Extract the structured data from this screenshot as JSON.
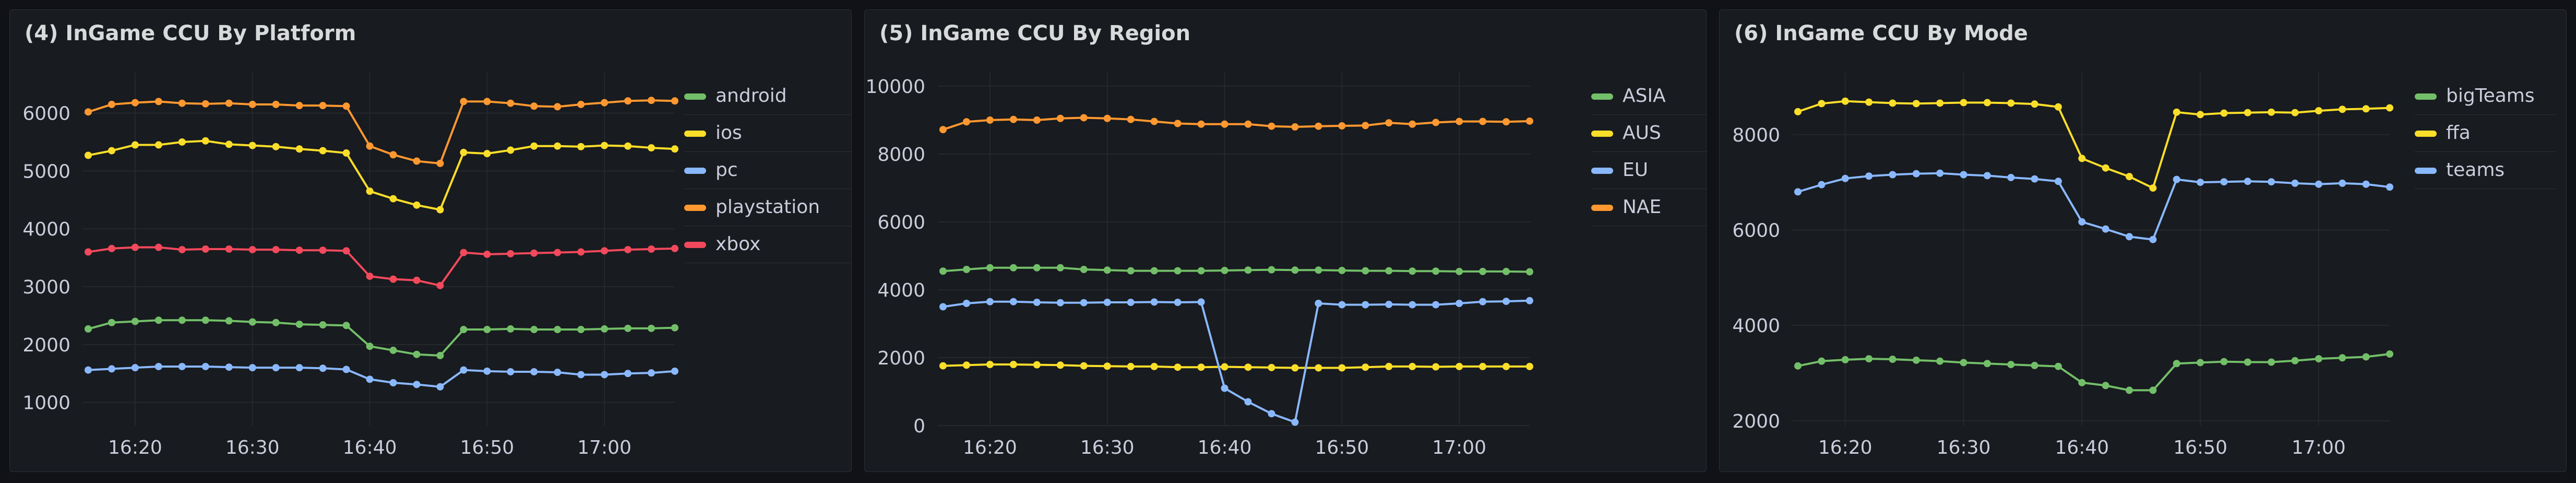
{
  "panels": [
    {
      "title": "(4) InGame CCU By Platform",
      "legend": [
        {
          "label": "android",
          "color": "#73bf69"
        },
        {
          "label": "ios",
          "color": "#fade2a"
        },
        {
          "label": "pc",
          "color": "#8ab8ff"
        },
        {
          "label": "playstation",
          "color": "#ff9830"
        },
        {
          "label": "xbox",
          "color": "#f2495c"
        }
      ]
    },
    {
      "title": "(5) InGame CCU By Region",
      "legend": [
        {
          "label": "ASIA",
          "color": "#73bf69"
        },
        {
          "label": "AUS",
          "color": "#fade2a"
        },
        {
          "label": "EU",
          "color": "#8ab8ff"
        },
        {
          "label": "NAE",
          "color": "#ff9830"
        }
      ]
    },
    {
      "title": "(6) InGame CCU By Mode",
      "legend": [
        {
          "label": "bigTeams",
          "color": "#73bf69"
        },
        {
          "label": "ffa",
          "color": "#fade2a"
        },
        {
          "label": "teams",
          "color": "#8ab8ff"
        }
      ]
    }
  ],
  "chart_data": [
    {
      "type": "line",
      "title": "(4) InGame CCU By Platform",
      "x": [
        "16:16",
        "16:18",
        "16:20",
        "16:22",
        "16:24",
        "16:26",
        "16:28",
        "16:30",
        "16:32",
        "16:34",
        "16:36",
        "16:38",
        "16:40",
        "16:42",
        "16:44",
        "16:46",
        "16:48",
        "16:50",
        "16:52",
        "16:54",
        "16:56",
        "16:58",
        "17:00",
        "17:02",
        "17:04",
        "17:06"
      ],
      "xticks": [
        "16:20",
        "16:30",
        "16:40",
        "16:50",
        "17:00"
      ],
      "yticks": [
        1000,
        2000,
        3000,
        4000,
        5000,
        6000
      ],
      "ylim": [
        600,
        6700
      ],
      "legend_position": "right",
      "grid": true,
      "series": [
        {
          "name": "android",
          "color": "#73bf69",
          "values": [
            2270,
            2380,
            2400,
            2420,
            2420,
            2420,
            2410,
            2390,
            2380,
            2350,
            2340,
            2330,
            1970,
            1900,
            1830,
            1810,
            2260,
            2260,
            2270,
            2260,
            2260,
            2260,
            2270,
            2280,
            2280,
            2290
          ]
        },
        {
          "name": "ios",
          "color": "#fade2a",
          "values": [
            5270,
            5350,
            5450,
            5450,
            5500,
            5520,
            5460,
            5440,
            5420,
            5380,
            5350,
            5310,
            4650,
            4520,
            4410,
            4330,
            5320,
            5300,
            5360,
            5430,
            5430,
            5420,
            5440,
            5430,
            5400,
            5380
          ]
        },
        {
          "name": "pc",
          "color": "#8ab8ff",
          "values": [
            1560,
            1580,
            1600,
            1620,
            1620,
            1620,
            1610,
            1600,
            1600,
            1600,
            1590,
            1570,
            1400,
            1340,
            1310,
            1270,
            1560,
            1540,
            1530,
            1530,
            1520,
            1480,
            1480,
            1500,
            1510,
            1540
          ]
        },
        {
          "name": "playstation",
          "color": "#ff9830",
          "values": [
            6020,
            6150,
            6180,
            6200,
            6170,
            6160,
            6170,
            6150,
            6150,
            6130,
            6130,
            6120,
            5430,
            5280,
            5170,
            5130,
            6200,
            6200,
            6170,
            6120,
            6110,
            6150,
            6180,
            6210,
            6220,
            6210
          ]
        },
        {
          "name": "xbox",
          "color": "#f2495c",
          "values": [
            3600,
            3660,
            3680,
            3680,
            3640,
            3650,
            3650,
            3640,
            3640,
            3630,
            3630,
            3620,
            3180,
            3130,
            3110,
            3020,
            3590,
            3560,
            3570,
            3580,
            3590,
            3600,
            3620,
            3640,
            3650,
            3660
          ]
        }
      ]
    },
    {
      "type": "line",
      "title": "(5) InGame CCU By Region",
      "x": [
        "16:16",
        "16:18",
        "16:20",
        "16:22",
        "16:24",
        "16:26",
        "16:28",
        "16:30",
        "16:32",
        "16:34",
        "16:36",
        "16:38",
        "16:40",
        "16:42",
        "16:44",
        "16:46",
        "16:48",
        "16:50",
        "16:52",
        "16:54",
        "16:56",
        "16:58",
        "17:00",
        "17:02",
        "17:04",
        "17:06"
      ],
      "xticks": [
        "16:20",
        "16:30",
        "16:40",
        "16:50",
        "17:00"
      ],
      "yticks": [
        0,
        2000,
        4000,
        6000,
        8000,
        10000
      ],
      "ylim": [
        0,
        10400
      ],
      "legend_position": "right",
      "grid": true,
      "series": [
        {
          "name": "ASIA",
          "color": "#73bf69",
          "values": [
            4550,
            4600,
            4650,
            4650,
            4650,
            4650,
            4600,
            4580,
            4560,
            4560,
            4560,
            4560,
            4570,
            4580,
            4590,
            4580,
            4580,
            4570,
            4560,
            4560,
            4550,
            4550,
            4540,
            4540,
            4540,
            4530
          ]
        },
        {
          "name": "AUS",
          "color": "#fade2a",
          "values": [
            1760,
            1780,
            1800,
            1800,
            1790,
            1780,
            1760,
            1750,
            1740,
            1740,
            1720,
            1720,
            1730,
            1720,
            1710,
            1700,
            1700,
            1700,
            1720,
            1740,
            1740,
            1730,
            1740,
            1740,
            1740,
            1740
          ]
        },
        {
          "name": "EU",
          "color": "#8ab8ff",
          "values": [
            3500,
            3600,
            3650,
            3650,
            3630,
            3620,
            3620,
            3630,
            3630,
            3640,
            3630,
            3640,
            1100,
            700,
            350,
            100,
            3600,
            3560,
            3560,
            3570,
            3560,
            3560,
            3600,
            3650,
            3660,
            3680
          ]
        },
        {
          "name": "NAE",
          "color": "#ff9830",
          "values": [
            8720,
            8950,
            9000,
            9020,
            9000,
            9050,
            9070,
            9050,
            9020,
            8960,
            8900,
            8880,
            8880,
            8880,
            8820,
            8800,
            8820,
            8830,
            8840,
            8920,
            8880,
            8930,
            8960,
            8960,
            8950,
            8970
          ]
        }
      ]
    },
    {
      "type": "line",
      "title": "(6) InGame CCU By Mode",
      "x": [
        "16:16",
        "16:18",
        "16:20",
        "16:22",
        "16:24",
        "16:26",
        "16:28",
        "16:30",
        "16:32",
        "16:34",
        "16:36",
        "16:38",
        "16:40",
        "16:42",
        "16:44",
        "16:46",
        "16:48",
        "16:50",
        "16:52",
        "16:54",
        "16:56",
        "16:58",
        "17:00",
        "17:02",
        "17:04",
        "17:06"
      ],
      "xticks": [
        "16:20",
        "16:30",
        "16:40",
        "16:50",
        "17:00"
      ],
      "yticks": [
        2000,
        4000,
        6000,
        8000
      ],
      "ylim": [
        1900,
        9300
      ],
      "legend_position": "right",
      "grid": true,
      "series": [
        {
          "name": "bigTeams",
          "color": "#73bf69",
          "values": [
            3150,
            3250,
            3280,
            3300,
            3290,
            3270,
            3250,
            3220,
            3200,
            3180,
            3160,
            3140,
            2800,
            2740,
            2640,
            2640,
            3200,
            3220,
            3240,
            3230,
            3230,
            3260,
            3300,
            3320,
            3340,
            3400
          ]
        },
        {
          "name": "ffa",
          "color": "#fade2a",
          "values": [
            8480,
            8650,
            8700,
            8680,
            8660,
            8650,
            8660,
            8670,
            8670,
            8660,
            8640,
            8580,
            7500,
            7300,
            7120,
            6880,
            8470,
            8420,
            8450,
            8460,
            8470,
            8460,
            8500,
            8530,
            8540,
            8560
          ]
        },
        {
          "name": "teams",
          "color": "#8ab8ff",
          "values": [
            6800,
            6950,
            7080,
            7130,
            7160,
            7180,
            7190,
            7160,
            7140,
            7100,
            7070,
            7020,
            6170,
            6020,
            5860,
            5800,
            7060,
            7000,
            7010,
            7020,
            7010,
            6980,
            6960,
            6980,
            6960,
            6900
          ]
        }
      ]
    }
  ]
}
